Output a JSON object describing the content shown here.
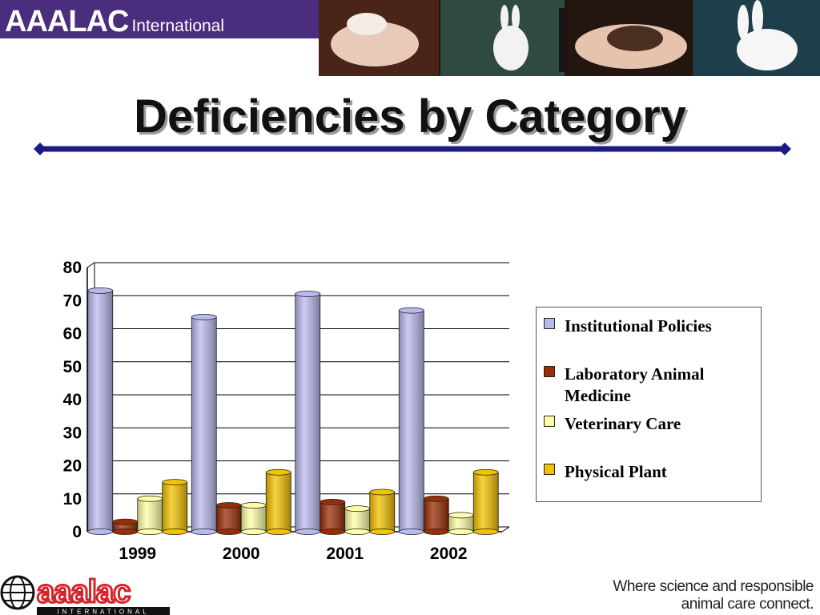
{
  "header": {
    "logo_main": "AAALAC",
    "logo_sub": "International"
  },
  "colors": {
    "brand_purple": "#4a2d7c",
    "rule_navy": "#1b1b88",
    "footer_red": "#d8232a"
  },
  "slide": {
    "title": "Deficiencies by Category"
  },
  "chart_data": {
    "type": "bar",
    "style": "3d-cylinder",
    "categories": [
      "1999",
      "2000",
      "2001",
      "2002"
    ],
    "series": [
      {
        "name": "Institutional Policies",
        "values": [
          73,
          65,
          72,
          67
        ],
        "color": "#b9b9ef"
      },
      {
        "name": "Laboratory Animal Medicine",
        "values": [
          3,
          8,
          9,
          10
        ],
        "color": "#9a2d05"
      },
      {
        "name": "Veterinary Care",
        "values": [
          10,
          8,
          7,
          5
        ],
        "color": "#ffffa8"
      },
      {
        "name": "Physical Plant",
        "values": [
          15,
          18,
          12,
          18
        ],
        "color": "#f2c200"
      }
    ],
    "ylim": [
      0,
      80
    ],
    "yticks": [
      "0",
      "10",
      "20",
      "30",
      "40",
      "50",
      "60",
      "70",
      "80"
    ],
    "grid": true,
    "legend_position": "right",
    "title": "",
    "xlabel": "",
    "ylabel": ""
  },
  "footer": {
    "logo_text": "aaalac",
    "logo_sub": "INTERNATIONAL",
    "tagline_line1": "Where science and responsible",
    "tagline_line2": "animal care connect."
  },
  "icons": [
    "globe-icon"
  ]
}
